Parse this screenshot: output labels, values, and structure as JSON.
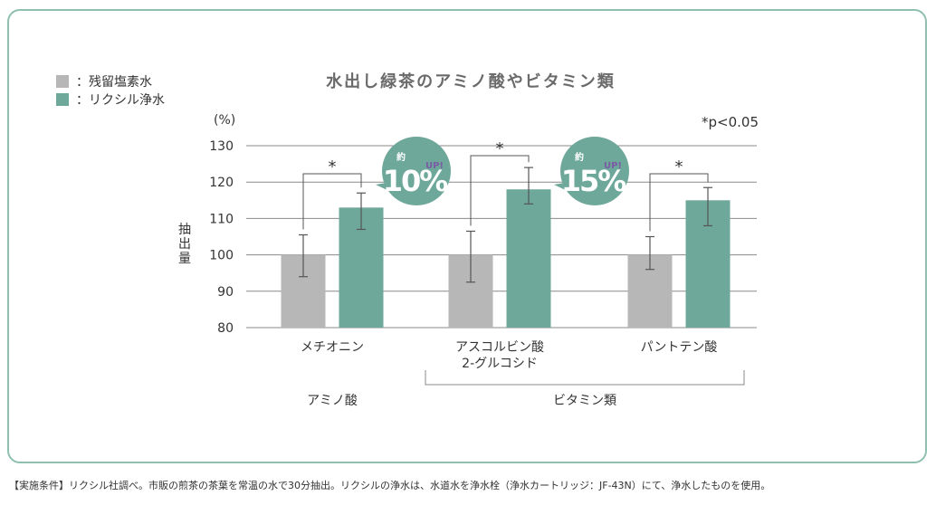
{
  "chart_data": {
    "type": "bar",
    "title": "水出し緑茶のアミノ酸やビタミン類",
    "ylabel": "抽出量",
    "yunit": "(%)",
    "ylim": [
      80,
      130
    ],
    "yticks": [
      80,
      90,
      100,
      110,
      120,
      130
    ],
    "categories": [
      "メチオニン",
      "アスコルビン酸\n2-グルコシド",
      "パントテン酸"
    ],
    "series": [
      {
        "name": "：残留塩素水",
        "color": "#b7b7b7",
        "values": [
          100,
          100,
          100
        ],
        "err_low": [
          94,
          92.5,
          96
        ],
        "err_high": [
          105.5,
          106.5,
          105
        ]
      },
      {
        "name": "：リクシル浄水",
        "color": "#6ea89a",
        "values": [
          113,
          118,
          115
        ],
        "err_low": [
          107,
          114,
          108
        ],
        "err_high": [
          117,
          124,
          118.5
        ]
      }
    ],
    "groups": [
      {
        "label": "アミノ酸",
        "categories": [
          0
        ]
      },
      {
        "label": "ビタミン類",
        "categories": [
          1,
          2
        ]
      }
    ],
    "significance_mark": "*",
    "significance_note": "*p<0.05",
    "badges": [
      {
        "prefix": "約",
        "value": "10%",
        "tag": "UP!",
        "between": 0
      },
      {
        "prefix": "約",
        "value": "15%",
        "tag": "UP!",
        "between": 1
      }
    ]
  },
  "footnote": "【実施条件】リクシル社調べ。市販の煎茶の茶葉を常温の水で30分抽出。リクシルの浄水は、水道水を浄水栓（浄水カートリッジ：JF-43N）にて、浄水したものを使用。"
}
